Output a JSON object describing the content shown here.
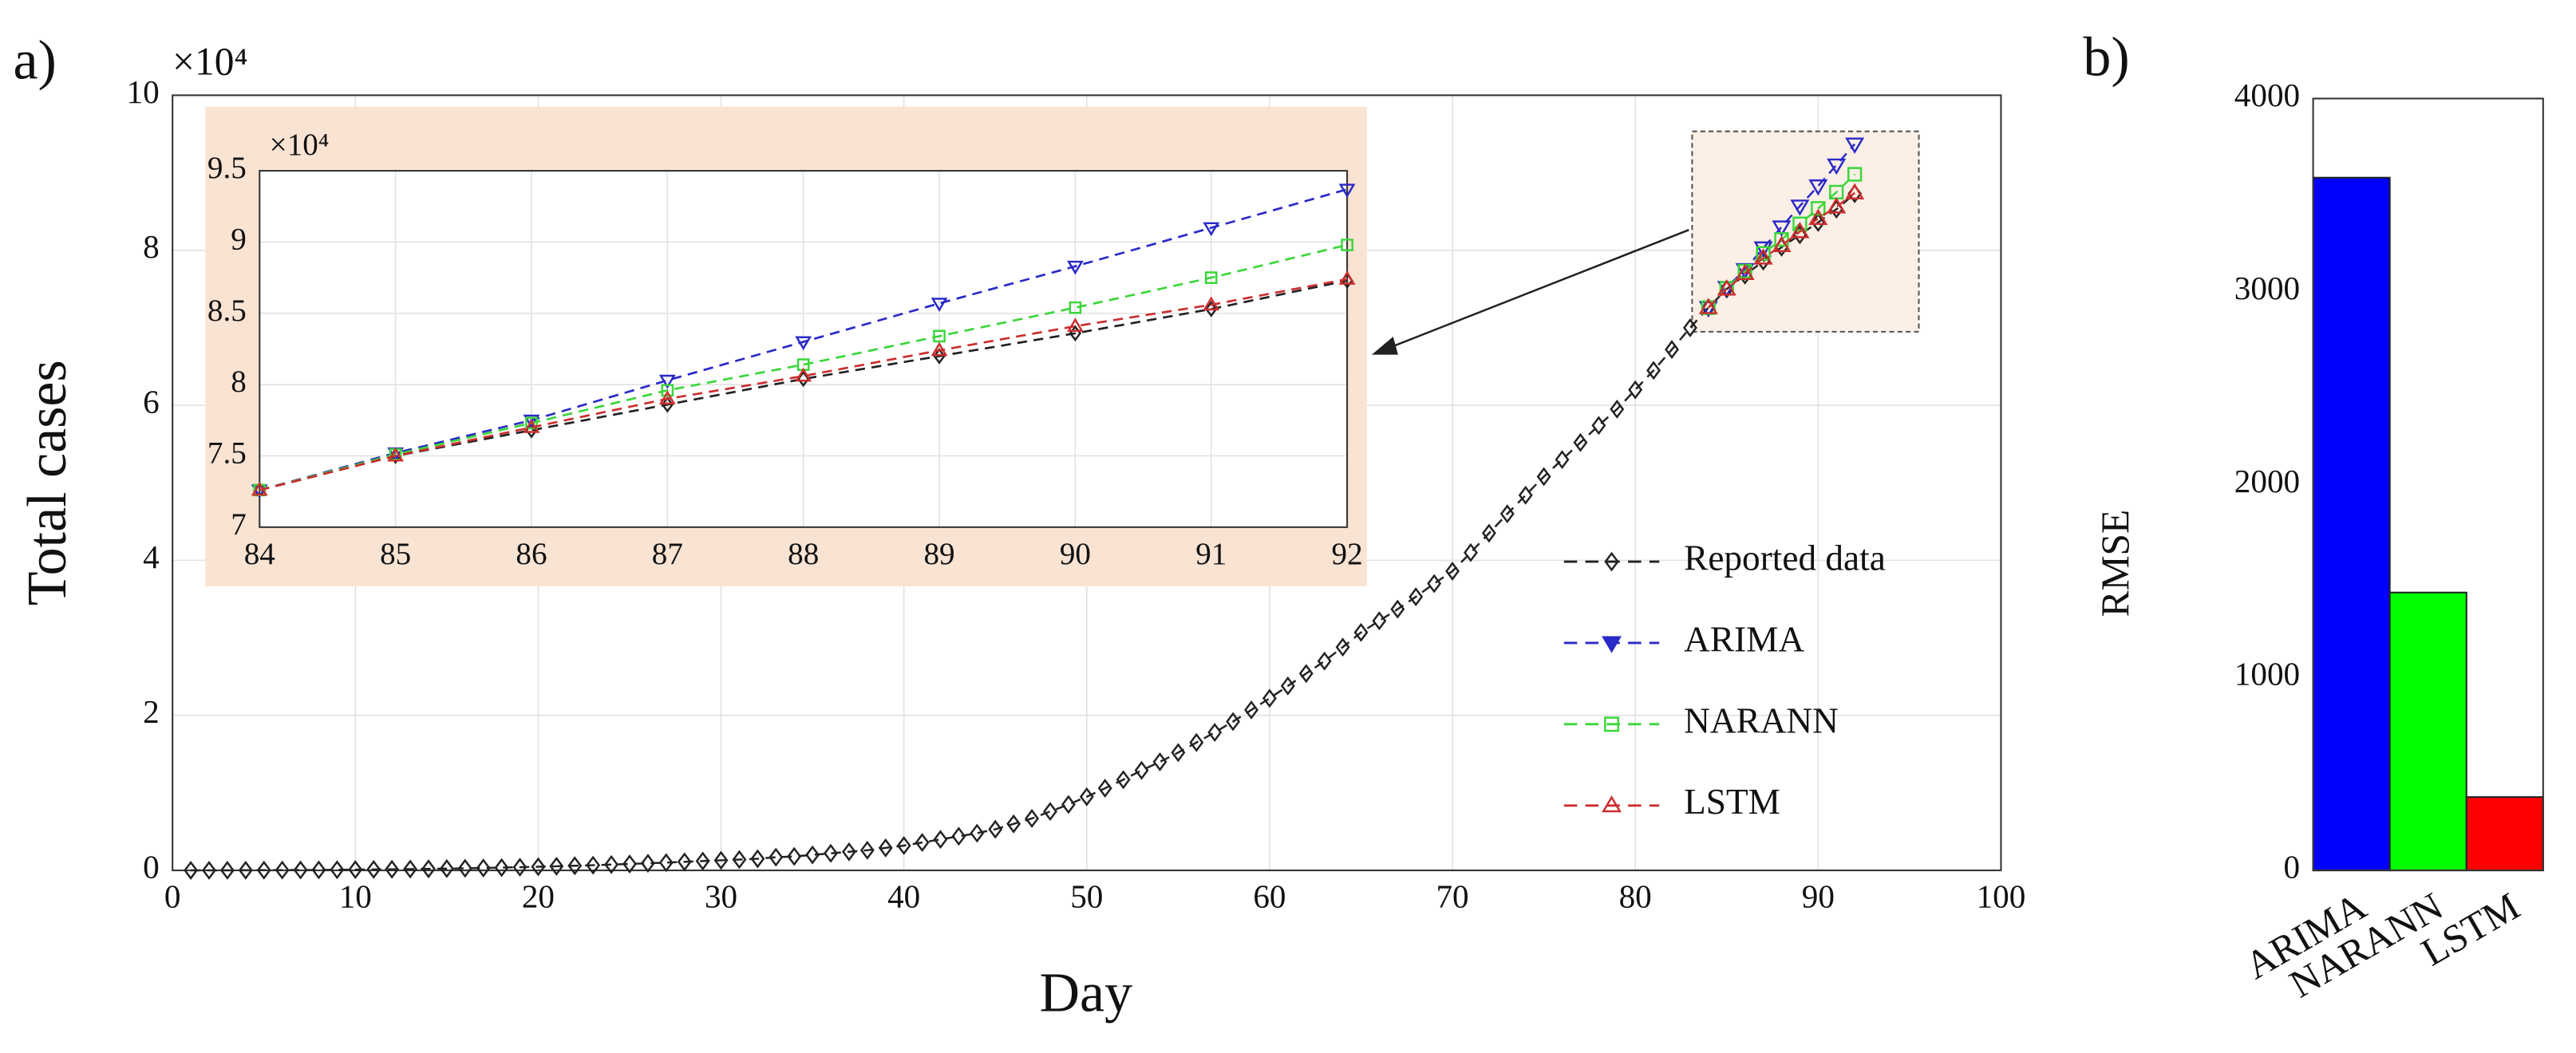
{
  "chart_data": [
    {
      "type": "line",
      "panel_label": "a)",
      "xlabel": "Day",
      "ylabel": "Total cases",
      "y_multiplier": "×10⁴",
      "xlim": [
        0,
        100
      ],
      "xticks": [
        0,
        10,
        20,
        30,
        40,
        50,
        60,
        70,
        80,
        90,
        100
      ],
      "ylim": [
        0,
        10
      ],
      "yticks": [
        0,
        2,
        4,
        6,
        8,
        10
      ],
      "grid": true,
      "legend": "right",
      "series": [
        {
          "name": "Reported data",
          "color": "#222222",
          "marker": "diamond",
          "x": [
            1,
            2,
            3,
            4,
            5,
            6,
            7,
            8,
            9,
            10,
            11,
            12,
            13,
            14,
            15,
            16,
            17,
            18,
            19,
            20,
            21,
            22,
            23,
            24,
            25,
            26,
            27,
            28,
            29,
            30,
            31,
            32,
            33,
            34,
            35,
            36,
            37,
            38,
            39,
            40,
            41,
            42,
            43,
            44,
            45,
            46,
            47,
            48,
            49,
            50,
            51,
            52,
            53,
            54,
            55,
            56,
            57,
            58,
            59,
            60,
            61,
            62,
            63,
            64,
            65,
            66,
            67,
            68,
            69,
            70,
            71,
            72,
            73,
            74,
            75,
            76,
            77,
            78,
            79,
            80,
            81,
            82,
            83,
            84,
            85,
            86,
            87,
            88,
            89,
            90,
            91,
            92
          ],
          "values": [
            0.0005,
            0.001,
            0.001,
            0.002,
            0.003,
            0.004,
            0.005,
            0.006,
            0.008,
            0.01,
            0.012,
            0.014,
            0.017,
            0.02,
            0.023,
            0.027,
            0.031,
            0.036,
            0.041,
            0.047,
            0.053,
            0.06,
            0.067,
            0.075,
            0.083,
            0.092,
            0.1,
            0.11,
            0.12,
            0.13,
            0.14,
            0.15,
            0.17,
            0.18,
            0.2,
            0.22,
            0.24,
            0.26,
            0.29,
            0.32,
            0.36,
            0.4,
            0.44,
            0.48,
            0.53,
            0.6,
            0.67,
            0.76,
            0.85,
            0.95,
            1.06,
            1.17,
            1.29,
            1.4,
            1.52,
            1.65,
            1.78,
            1.92,
            2.07,
            2.22,
            2.38,
            2.54,
            2.7,
            2.88,
            3.07,
            3.22,
            3.37,
            3.53,
            3.7,
            3.86,
            4.1,
            4.35,
            4.6,
            4.84,
            5.08,
            5.3,
            5.52,
            5.74,
            5.95,
            6.2,
            6.45,
            6.72,
            7.0,
            7.26,
            7.5,
            7.68,
            7.86,
            8.04,
            8.2,
            8.36,
            8.53,
            8.73
          ]
        },
        {
          "name": "ARIMA",
          "color": "#2a2ac8",
          "marker": "triangle-down",
          "x": [
            84,
            85,
            86,
            87,
            88,
            89,
            90,
            91,
            92
          ],
          "values": [
            7.26,
            7.52,
            7.75,
            8.03,
            8.3,
            8.57,
            8.83,
            9.1,
            9.37
          ]
        },
        {
          "name": "NARANN",
          "color": "#3ad63a",
          "marker": "square",
          "x": [
            84,
            85,
            86,
            87,
            88,
            89,
            90,
            91,
            92
          ],
          "values": [
            7.26,
            7.51,
            7.73,
            7.96,
            8.14,
            8.34,
            8.54,
            8.75,
            8.98
          ]
        },
        {
          "name": "LSTM",
          "color": "#cc2e2e",
          "marker": "triangle-up",
          "x": [
            84,
            85,
            86,
            87,
            88,
            89,
            90,
            91,
            92
          ],
          "values": [
            7.26,
            7.5,
            7.7,
            7.9,
            8.06,
            8.24,
            8.41,
            8.56,
            8.74
          ]
        }
      ],
      "inset": {
        "y_multiplier": "×10⁴",
        "xlim": [
          84,
          92
        ],
        "xticks": [
          84,
          85,
          86,
          87,
          88,
          89,
          90,
          91,
          92
        ],
        "ylim": [
          7,
          9.5
        ],
        "yticks": [
          7,
          7.5,
          8,
          8.5,
          9,
          9.5
        ],
        "grid": true
      }
    },
    {
      "type": "bar",
      "panel_label": "b)",
      "ylabel": "RMSE",
      "categories": [
        "ARIMA",
        "NARANN",
        "LSTM"
      ],
      "values": [
        3590,
        1440,
        380
      ],
      "colors": [
        "#0000ff",
        "#00ff00",
        "#ff0000"
      ],
      "ylim": [
        0,
        4000
      ],
      "yticks": [
        0,
        1000,
        2000,
        3000,
        4000
      ]
    }
  ]
}
